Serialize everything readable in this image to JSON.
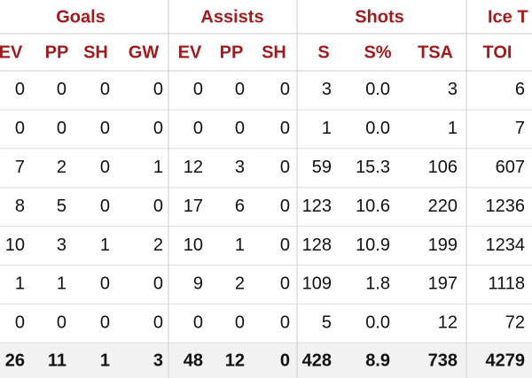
{
  "table": {
    "groups": [
      "Goals",
      "Assists",
      "Shots",
      "Ice T"
    ],
    "columns": [
      "EV",
      "PP",
      "SH",
      "GW",
      "EV",
      "PP",
      "SH",
      "S",
      "S%",
      "TSA",
      "TOI"
    ],
    "rows": [
      [
        "0",
        "0",
        "0",
        "0",
        "0",
        "0",
        "0",
        "3",
        "0.0",
        "3",
        "6"
      ],
      [
        "0",
        "0",
        "0",
        "0",
        "0",
        "0",
        "0",
        "1",
        "0.0",
        "1",
        "7"
      ],
      [
        "7",
        "2",
        "0",
        "1",
        "12",
        "3",
        "0",
        "59",
        "15.3",
        "106",
        "607"
      ],
      [
        "8",
        "5",
        "0",
        "0",
        "17",
        "6",
        "0",
        "123",
        "10.6",
        "220",
        "1236"
      ],
      [
        "10",
        "3",
        "1",
        "2",
        "10",
        "1",
        "0",
        "128",
        "10.9",
        "199",
        "1234"
      ],
      [
        "1",
        "1",
        "0",
        "0",
        "9",
        "2",
        "0",
        "109",
        "1.8",
        "197",
        "1118"
      ],
      [
        "0",
        "0",
        "0",
        "0",
        "0",
        "0",
        "0",
        "5",
        "0.0",
        "12",
        "72"
      ]
    ],
    "total": [
      "26",
      "11",
      "1",
      "3",
      "48",
      "12",
      "0",
      "428",
      "8.9",
      "738",
      "4279"
    ]
  }
}
